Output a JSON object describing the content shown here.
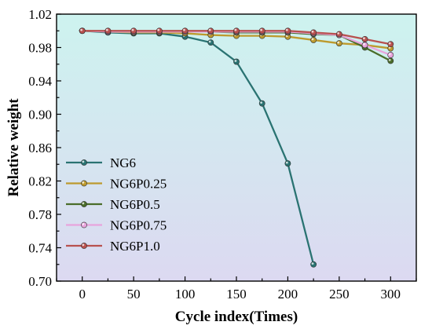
{
  "chart_data": {
    "type": "line",
    "xlabel": "Cycle index(Times)",
    "ylabel": "Relative weight",
    "xlim": [
      -25,
      325
    ],
    "ylim": [
      0.7,
      1.02
    ],
    "xticks": [
      0,
      50,
      100,
      150,
      200,
      250,
      300
    ],
    "yticks": [
      0.7,
      0.74,
      0.78,
      0.82,
      0.86,
      0.9,
      0.94,
      0.98,
      1.02
    ],
    "ytick_labels": [
      "0.70",
      "0.74",
      "0.78",
      "0.82",
      "0.86",
      "0.90",
      "0.94",
      "0.98",
      "1.02"
    ],
    "background_gradient": [
      "#cdf3ef",
      "#dcd9f1"
    ],
    "grid": false,
    "legend_position": "lower-left",
    "series": [
      {
        "name": "NG6",
        "color": "#2a7372",
        "x": [
          0,
          25,
          50,
          75,
          100,
          125,
          150,
          175,
          200,
          225
        ],
        "y": [
          1.0,
          0.998,
          0.997,
          0.997,
          0.993,
          0.986,
          0.963,
          0.913,
          0.841,
          0.72
        ]
      },
      {
        "name": "NG6P0.25",
        "color": "#bd9a2e",
        "x": [
          0,
          25,
          50,
          75,
          100,
          125,
          150,
          175,
          200,
          225,
          250,
          275,
          300
        ],
        "y": [
          1.0,
          0.999,
          0.998,
          0.998,
          0.997,
          0.995,
          0.994,
          0.994,
          0.993,
          0.989,
          0.985,
          0.983,
          0.979
        ]
      },
      {
        "name": "NG6P0.5",
        "color": "#4a6d2a",
        "x": [
          0,
          25,
          50,
          75,
          100,
          125,
          150,
          175,
          200,
          225,
          250,
          275,
          300
        ],
        "y": [
          1.0,
          0.999,
          0.999,
          0.999,
          0.999,
          0.999,
          0.998,
          0.998,
          0.998,
          0.996,
          0.995,
          0.98,
          0.964
        ]
      },
      {
        "name": "NG6P0.75",
        "color": "#e8a4dc",
        "x": [
          0,
          25,
          50,
          75,
          100,
          125,
          150,
          175,
          200,
          225,
          250,
          275,
          300
        ],
        "y": [
          1.0,
          0.999,
          0.999,
          0.999,
          0.999,
          0.999,
          0.999,
          0.999,
          0.999,
          0.997,
          0.995,
          0.983,
          0.971
        ]
      },
      {
        "name": "NG6P1.0",
        "color": "#b8514f",
        "x": [
          0,
          25,
          50,
          75,
          100,
          125,
          150,
          175,
          200,
          225,
          250,
          275,
          300
        ],
        "y": [
          1.0,
          1.0,
          1.0,
          1.0,
          1.0,
          1.0,
          1.0,
          1.0,
          1.0,
          0.998,
          0.996,
          0.99,
          0.984
        ]
      }
    ]
  }
}
